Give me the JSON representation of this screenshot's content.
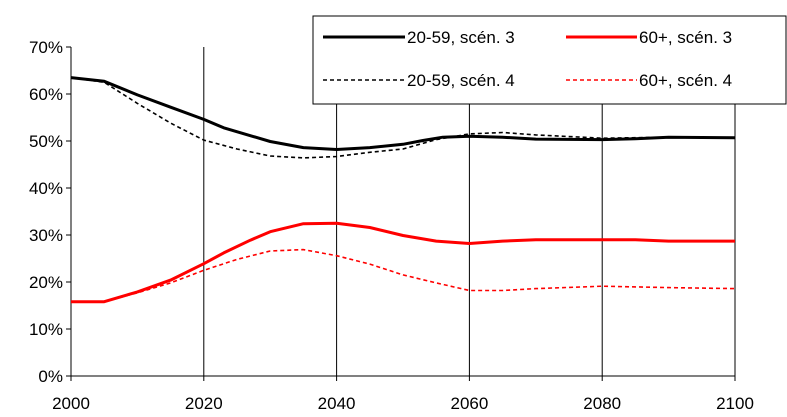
{
  "chart_data": {
    "type": "line",
    "title": "",
    "xlabel": "",
    "ylabel": "",
    "xlim": [
      2000,
      2100
    ],
    "ylim": [
      0,
      70
    ],
    "x_ticks": [
      2000,
      2020,
      2040,
      2060,
      2080,
      2100
    ],
    "x_tick_labels": [
      "2000",
      "2020",
      "2040",
      "2060",
      "2080",
      "2100"
    ],
    "y_ticks": [
      0,
      10,
      20,
      30,
      40,
      50,
      60,
      70
    ],
    "y_tick_labels": [
      "0%",
      "10%",
      "20%",
      "30%",
      "40%",
      "50%",
      "60%",
      "70%"
    ],
    "grid": "vertical lines at x ticks",
    "legend_position": "top-right",
    "series": [
      {
        "name": "20-59, scén. 3",
        "color": "#000000",
        "style": "solid",
        "x": [
          2000,
          2005,
          2010,
          2015,
          2020,
          2023,
          2030,
          2035,
          2040,
          2045,
          2050,
          2053,
          2056,
          2060,
          2065,
          2070,
          2080,
          2085,
          2090,
          2100
        ],
        "y": [
          63.5,
          62.7,
          59.8,
          57.2,
          54.6,
          52.8,
          49.9,
          48.6,
          48.2,
          48.6,
          49.3,
          50.1,
          50.8,
          51.0,
          50.8,
          50.4,
          50.3,
          50.5,
          50.8,
          50.7
        ]
      },
      {
        "name": "60+, scén. 3",
        "color": "#ff0000",
        "style": "solid",
        "x": [
          2000,
          2005,
          2010,
          2015,
          2020,
          2023,
          2027,
          2030,
          2035,
          2040,
          2045,
          2050,
          2055,
          2060,
          2065,
          2070,
          2080,
          2085,
          2090,
          2100
        ],
        "y": [
          15.8,
          15.8,
          17.9,
          20.4,
          23.9,
          26.2,
          28.9,
          30.7,
          32.4,
          32.5,
          31.6,
          29.9,
          28.7,
          28.2,
          28.7,
          29.0,
          29.0,
          29.0,
          28.7,
          28.7
        ]
      },
      {
        "name": "20-59, scén. 4",
        "color": "#000000",
        "style": "dashed",
        "x": [
          2000,
          2005,
          2010,
          2015,
          2020,
          2025,
          2030,
          2035,
          2040,
          2045,
          2050,
          2055,
          2060,
          2065,
          2070,
          2080,
          2090,
          2100
        ],
        "y": [
          63.5,
          62.5,
          58.0,
          53.8,
          50.2,
          48.3,
          46.8,
          46.4,
          46.7,
          47.6,
          48.3,
          50.3,
          51.5,
          51.8,
          51.3,
          50.6,
          50.8,
          50.7
        ]
      },
      {
        "name": "60+, scén. 4",
        "color": "#ff0000",
        "style": "dashed",
        "x": [
          2000,
          2005,
          2010,
          2015,
          2020,
          2025,
          2030,
          2035,
          2040,
          2045,
          2050,
          2055,
          2060,
          2065,
          2070,
          2080,
          2090,
          2100
        ],
        "y": [
          15.8,
          15.8,
          17.7,
          19.8,
          22.5,
          24.8,
          26.6,
          26.9,
          25.6,
          23.8,
          21.5,
          19.8,
          18.2,
          18.2,
          18.6,
          19.1,
          18.8,
          18.6
        ]
      }
    ]
  },
  "colors": {
    "background": "#ffffff",
    "axis": "#000000",
    "grid": "#000000"
  }
}
